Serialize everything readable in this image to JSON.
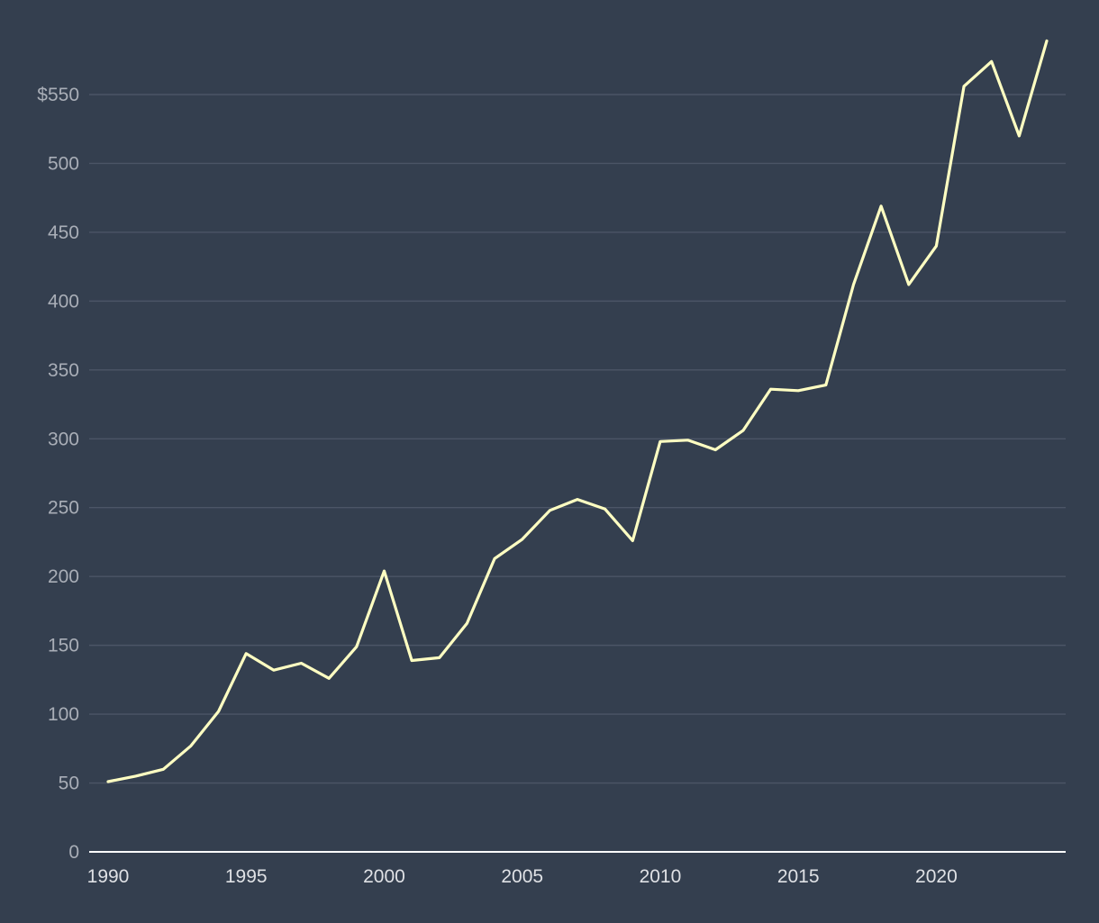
{
  "chart_data": {
    "type": "line",
    "title": "",
    "xlabel": "",
    "ylabel": "",
    "xlim": [
      1990,
      2024
    ],
    "ylim": [
      0,
      600
    ],
    "grid": true,
    "legend": "none",
    "y_ticks": [
      0,
      50,
      100,
      150,
      200,
      250,
      300,
      350,
      400,
      450,
      500,
      550
    ],
    "y_tick_labels": [
      "0",
      "50",
      "100",
      "150",
      "200",
      "250",
      "300",
      "350",
      "400",
      "450",
      "500",
      "$550"
    ],
    "x_ticks": [
      1990,
      1995,
      2000,
      2005,
      2010,
      2015,
      2020
    ],
    "x_tick_labels": [
      "1990",
      "1995",
      "2000",
      "2005",
      "2010",
      "2015",
      "2020"
    ],
    "x": [
      1990,
      1991,
      1992,
      1993,
      1994,
      1995,
      1996,
      1997,
      1998,
      1999,
      2000,
      2001,
      2002,
      2003,
      2004,
      2005,
      2006,
      2007,
      2008,
      2009,
      2010,
      2011,
      2012,
      2013,
      2014,
      2015,
      2016,
      2017,
      2018,
      2019,
      2020,
      2021,
      2022,
      2023,
      2024
    ],
    "series": [
      {
        "values": [
          51,
          55,
          60,
          77,
          102,
          144,
          132,
          137,
          126,
          149,
          204,
          139,
          141,
          166,
          213,
          227,
          248,
          256,
          249,
          226,
          298,
          299,
          292,
          306,
          336,
          335,
          339,
          412,
          469,
          412,
          440,
          556,
          574,
          520,
          589
        ]
      }
    ],
    "colors": {
      "background": "#343f4f",
      "line": "#ffffc2",
      "grid": "#4b5566",
      "baseline": "#ffffff",
      "y_tick_text": "#a9aeb7",
      "x_tick_text": "#dfe1e5"
    }
  }
}
